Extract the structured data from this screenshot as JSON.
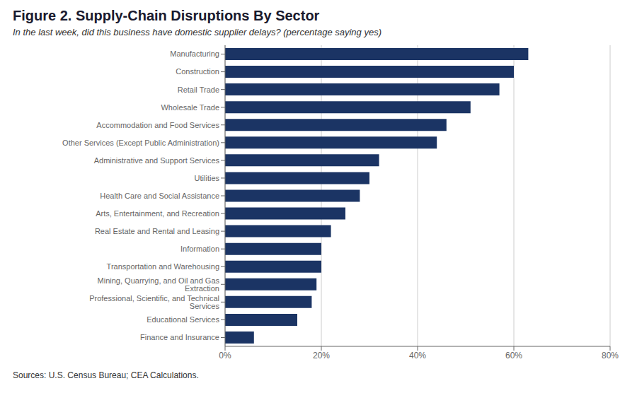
{
  "chart_data": {
    "type": "bar",
    "orientation": "horizontal",
    "title": "Figure 2. Supply-Chain Disruptions By Sector",
    "subtitle": "In the last week, did this business have domestic supplier delays? (percentage saying yes)",
    "annotations": [
      "Sources: U.S. Census Bureau; CEA Calculations."
    ],
    "categories": [
      "Manufacturing",
      "Construction",
      "Retail Trade",
      "Wholesale Trade",
      "Accommodation and Food Services",
      "Other Services (Except Public Administration)",
      "Administrative and Support Services",
      "Utilities",
      "Health Care and Social Assistance",
      "Arts, Entertainment, and Recreation",
      "Real Estate and Rental and Leasing",
      "Information",
      "Transportation and Warehousing",
      "Mining, Quarrying, and Oil and Gas Extraction",
      "Professional, Scientific, and Technical Services",
      "Educational Services",
      "Finance and Insurance"
    ],
    "values": [
      0.63,
      0.6,
      0.57,
      0.51,
      0.46,
      0.44,
      0.32,
      0.3,
      0.28,
      0.25,
      0.22,
      0.2,
      0.2,
      0.19,
      0.18,
      0.15,
      0.06
    ],
    "color": "#1b3464",
    "xlim": [
      0,
      0.8
    ],
    "xticks": [
      {
        "value": 0,
        "label": "0%"
      },
      {
        "value": 0.2,
        "label": "20%"
      },
      {
        "value": 0.4,
        "label": "40%"
      },
      {
        "value": 0.6,
        "label": "60%"
      },
      {
        "value": 0.8,
        "label": "80%"
      }
    ],
    "grid": true
  }
}
